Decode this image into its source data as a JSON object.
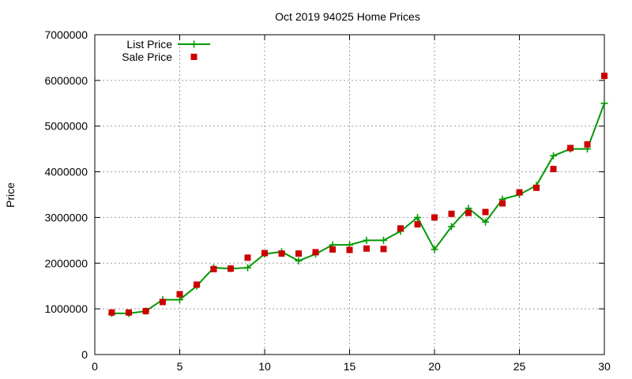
{
  "chart_data": {
    "type": "line",
    "title": "Oct 2019 94025 Home Prices",
    "xlabel": "",
    "ylabel": "Price",
    "xlim": [
      0,
      30
    ],
    "ylim": [
      0,
      7000000
    ],
    "x_ticks": [
      "0",
      "5",
      "10",
      "15",
      "20",
      "25",
      "30"
    ],
    "y_ticks": [
      "0",
      "1000000",
      "2000000",
      "3000000",
      "4000000",
      "5000000",
      "6000000",
      "7000000"
    ],
    "grid": true,
    "legend_position": "top-left",
    "series": [
      {
        "name": "List Price",
        "style": "line-with-plus-markers",
        "color": "#009900",
        "x": [
          1,
          2,
          3,
          4,
          5,
          6,
          7,
          8,
          9,
          10,
          11,
          12,
          13,
          14,
          15,
          16,
          17,
          18,
          19,
          20,
          21,
          22,
          23,
          24,
          25,
          26,
          27,
          28,
          29,
          30
        ],
        "values": [
          900000,
          900000,
          950000,
          1200000,
          1200000,
          1500000,
          1900000,
          1880000,
          1900000,
          2200000,
          2250000,
          2050000,
          2200000,
          2400000,
          2400000,
          2500000,
          2500000,
          2700000,
          3000000,
          2300000,
          2800000,
          3200000,
          2900000,
          3400000,
          3500000,
          3700000,
          4350000,
          4500000,
          4500000,
          5500000
        ]
      },
      {
        "name": "Sale Price",
        "style": "square-markers",
        "color": "#cc0000",
        "x": [
          1,
          2,
          3,
          4,
          5,
          6,
          7,
          8,
          9,
          10,
          11,
          12,
          13,
          14,
          15,
          16,
          17,
          18,
          19,
          20,
          21,
          22,
          23,
          24,
          25,
          26,
          27,
          28,
          29,
          30
        ],
        "values": [
          920000,
          920000,
          950000,
          1150000,
          1320000,
          1530000,
          1870000,
          1880000,
          2120000,
          2220000,
          2210000,
          2210000,
          2240000,
          2300000,
          2290000,
          2320000,
          2310000,
          2760000,
          2850000,
          3000000,
          3080000,
          3100000,
          3120000,
          3310000,
          3550000,
          3650000,
          4060000,
          4520000,
          4600000,
          6100000
        ]
      }
    ]
  }
}
